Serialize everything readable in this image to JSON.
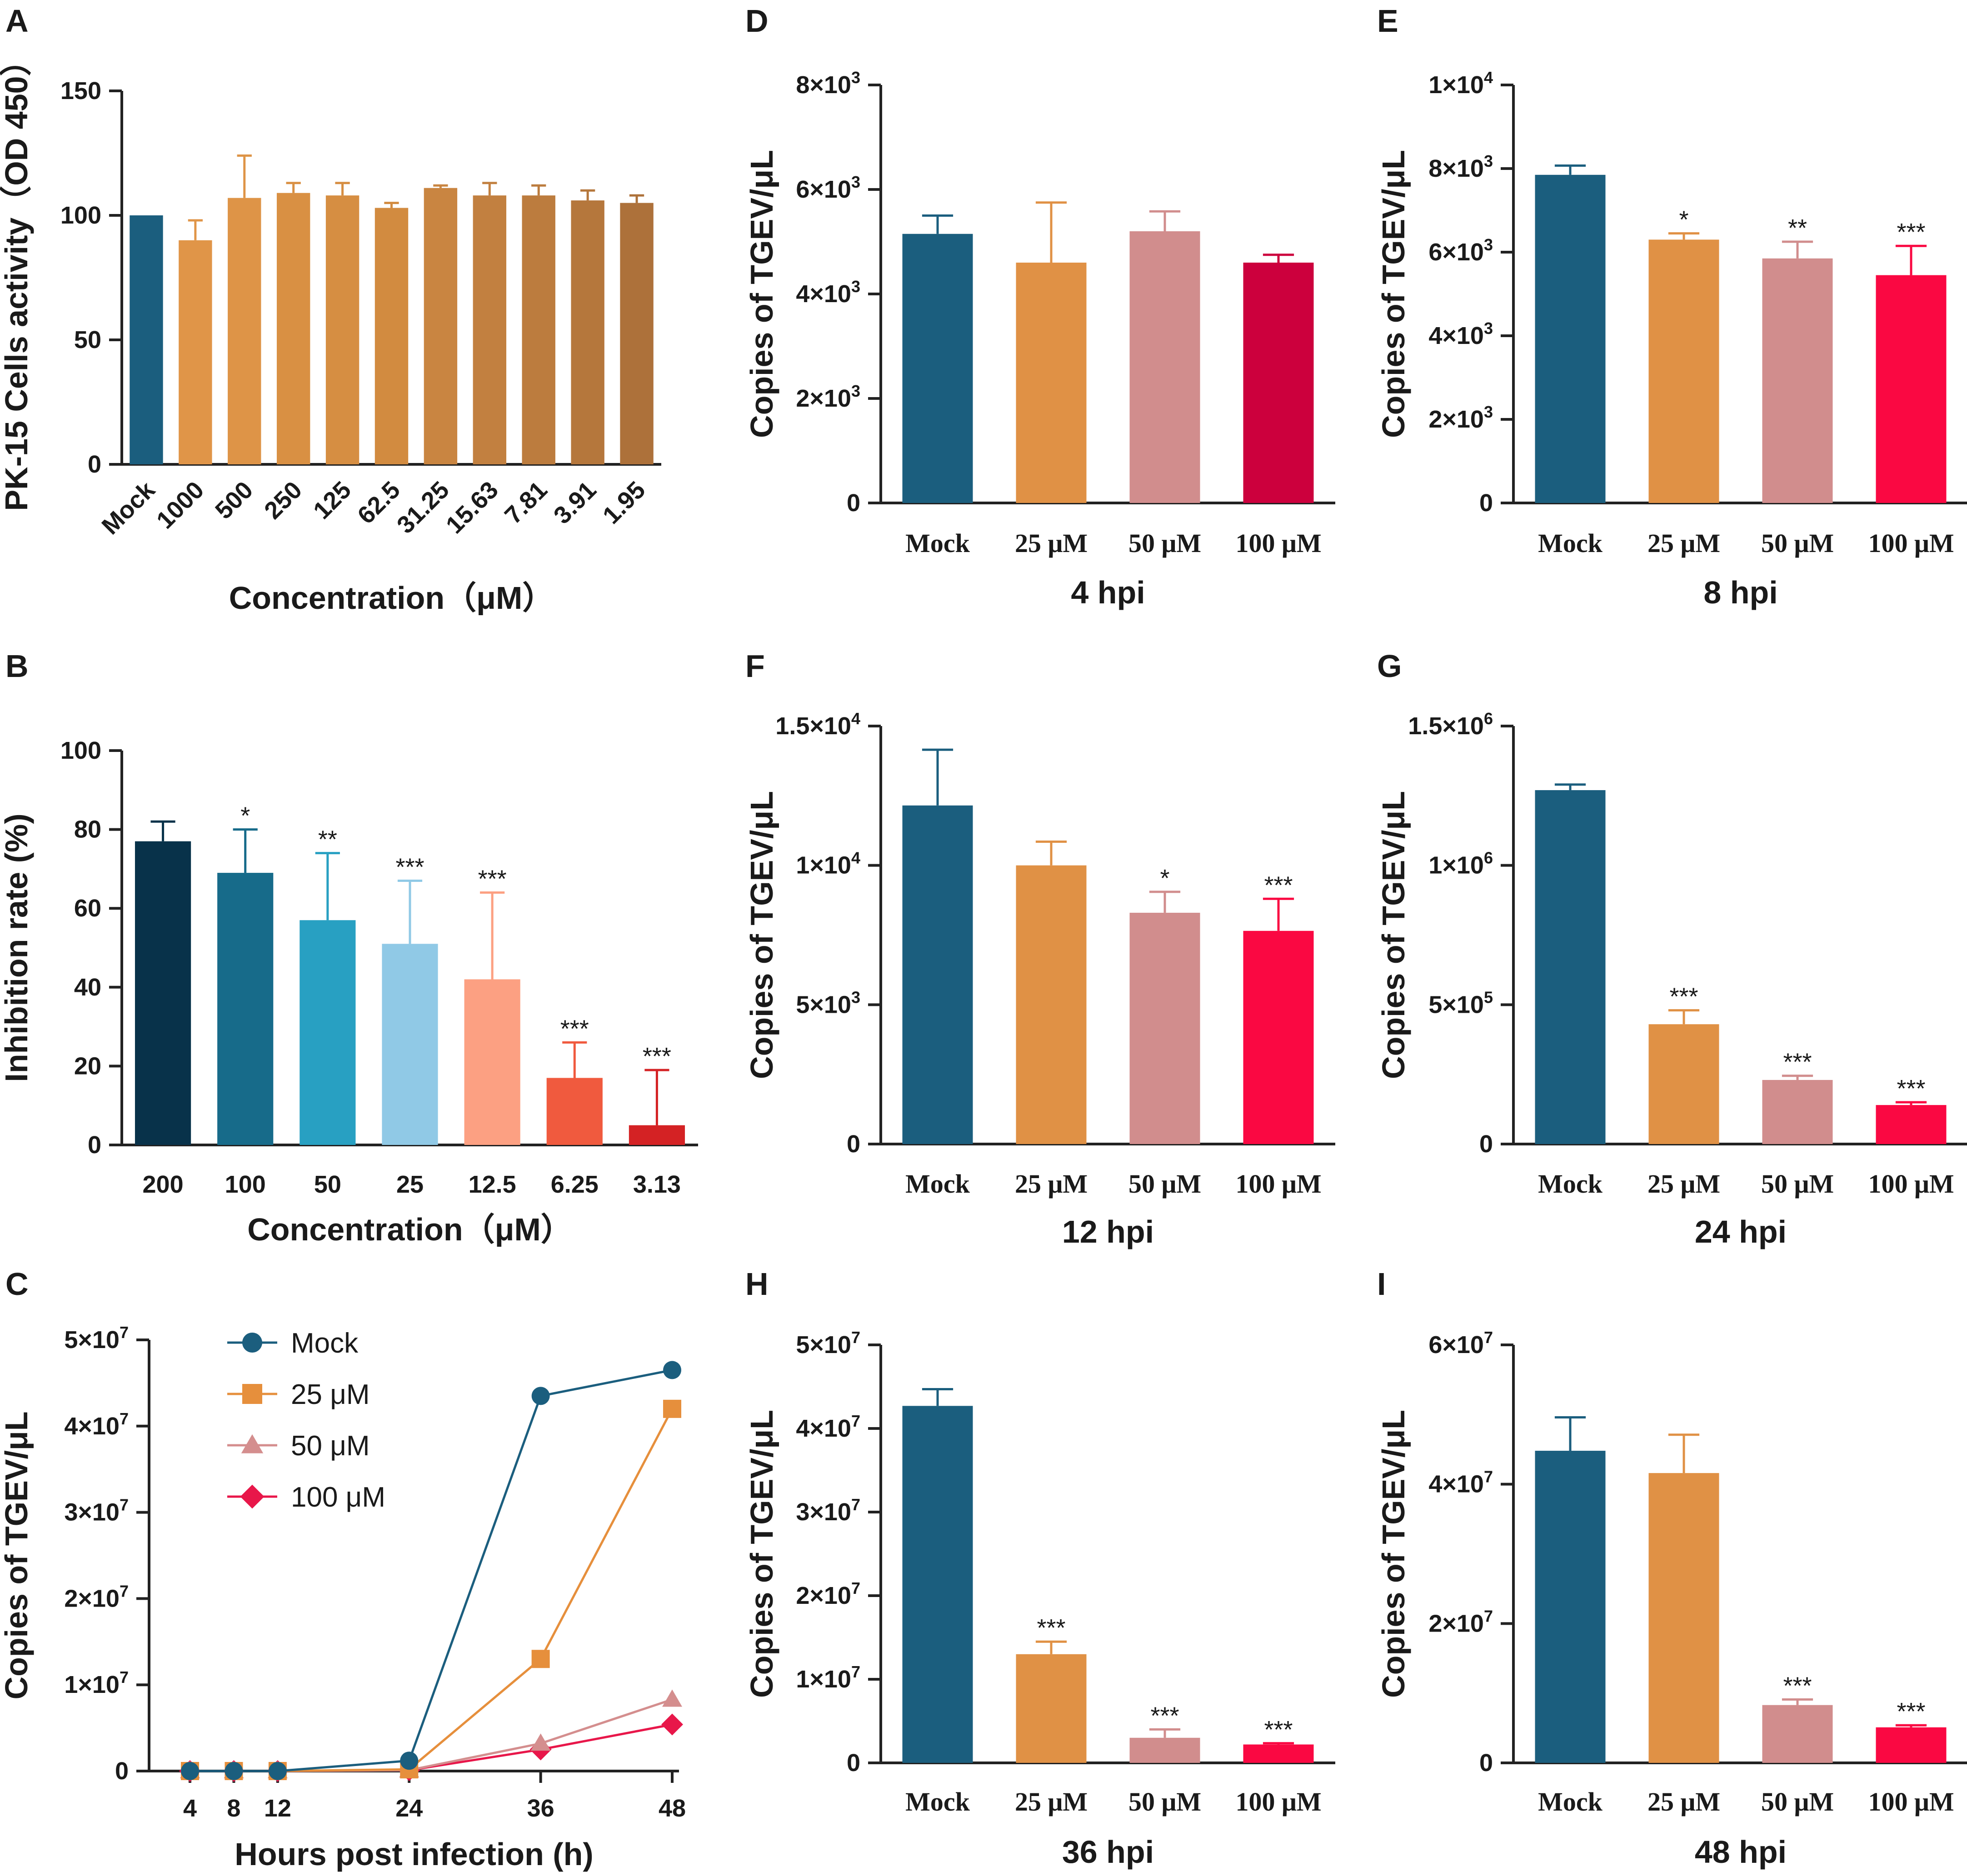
{
  "figure": "multi-panel bar and line charts of PK-15 cell viability and TGEV copy numbers",
  "chart_data": [
    {
      "panel": "A",
      "type": "bar",
      "title": "",
      "xlabel": "Concentration（μM）",
      "ylabel": "PK-15 Cells activity（OD 450）",
      "categories": [
        "Mock",
        "1000",
        "500",
        "250",
        "125",
        "62.5",
        "31.25",
        "15.63",
        "7.81",
        "3.91",
        "1.95"
      ],
      "values": [
        100,
        90,
        107,
        109,
        108,
        103,
        111,
        108,
        108,
        106,
        105
      ],
      "errors": [
        0,
        8,
        17,
        4,
        5,
        2,
        1,
        5,
        4,
        4,
        3
      ],
      "colors": [
        "#1b5e7e",
        "#e09548",
        "#de9447",
        "#d99043",
        "#d68e42",
        "#d28b40",
        "#c98541",
        "#c28040",
        "#bc7c3e",
        "#b5773c",
        "#ad713a"
      ],
      "significance": [
        "",
        "",
        "",
        "",
        "",
        "",
        "",
        "",
        "",
        "",
        ""
      ],
      "ylim": [
        0,
        150
      ],
      "yticks": [
        "0",
        "50",
        "100",
        "150"
      ]
    },
    {
      "panel": "B",
      "type": "bar",
      "title": "",
      "xlabel": "Concentration（μM）",
      "ylabel": "Inhibition rate (%)",
      "categories": [
        "200",
        "100",
        "50",
        "25",
        "12.5",
        "6.25",
        "3.13"
      ],
      "values": [
        77,
        69,
        57,
        51,
        42,
        17,
        5
      ],
      "errors": [
        5,
        11,
        17,
        16,
        22,
        9,
        14
      ],
      "colors": [
        "#08324a",
        "#176b8a",
        "#28a0c2",
        "#90c9e6",
        "#fca082",
        "#f05a3e",
        "#d42224"
      ],
      "significance": [
        "",
        "*",
        "**",
        "***",
        "***",
        "***",
        "***"
      ],
      "ylim": [
        0,
        100
      ],
      "yticks": [
        "0",
        "20",
        "40",
        "60",
        "80",
        "100"
      ]
    },
    {
      "panel": "C",
      "type": "line",
      "title": "",
      "xlabel": "Hours post infection (h)",
      "ylabel": "Copies of TGEV/μL",
      "x": [
        4,
        8,
        12,
        24,
        36,
        48
      ],
      "series": [
        {
          "name": "Mock",
          "color": "#1b5e7e",
          "marker": "circle",
          "values": [
            0,
            0,
            0,
            1200000,
            43500000,
            46500000
          ]
        },
        {
          "name": "25 μM",
          "color": "#e68f3c",
          "marker": "square",
          "values": [
            0,
            0,
            0,
            200000,
            13000000,
            42000000
          ]
        },
        {
          "name": "50 μM",
          "color": "#d48e8e",
          "marker": "triangle",
          "values": [
            0,
            0,
            0,
            100000,
            3200000,
            8300000
          ]
        },
        {
          "name": "100 μM",
          "color": "#e8174a",
          "marker": "diamond",
          "values": [
            0,
            0,
            0,
            100000,
            2500000,
            5400000
          ]
        }
      ],
      "xlim": [
        0,
        48
      ],
      "ylim": [
        0,
        50000000
      ],
      "yticks": [
        {
          "base": "0",
          "exp": ""
        },
        {
          "base": "1×10",
          "exp": "7"
        },
        {
          "base": "2×10",
          "exp": "7"
        },
        {
          "base": "3×10",
          "exp": "7"
        },
        {
          "base": "4×10",
          "exp": "7"
        },
        {
          "base": "5×10",
          "exp": "7"
        }
      ],
      "legend_position": "top-left"
    },
    {
      "panel": "D",
      "type": "bar",
      "title": "",
      "xlabel": "4 hpi",
      "ylabel": "Copies of TGEV/μL",
      "categories": [
        "Mock",
        "25 μM",
        "50 μM",
        "100 μM"
      ],
      "values": [
        5150,
        4600,
        5200,
        4600
      ],
      "errors": [
        350,
        1150,
        380,
        150
      ],
      "colors": [
        "#1b5e7e",
        "#e09145",
        "#d18d8d",
        "#cc003d"
      ],
      "significance": [
        "",
        "",
        "",
        ""
      ],
      "ylim": [
        0,
        8000
      ],
      "yticks": [
        {
          "base": "0",
          "exp": ""
        },
        {
          "base": "2×10",
          "exp": "3"
        },
        {
          "base": "4×10",
          "exp": "3"
        },
        {
          "base": "6×10",
          "exp": "3"
        },
        {
          "base": "8×10",
          "exp": "3"
        }
      ]
    },
    {
      "panel": "E",
      "type": "bar",
      "title": "",
      "xlabel": "8 hpi",
      "ylabel": "Copies of TGEV/μL",
      "categories": [
        "Mock",
        "25 μM",
        "50 μM",
        "100 μM"
      ],
      "values": [
        7850,
        6300,
        5850,
        5450
      ],
      "errors": [
        220,
        150,
        400,
        700
      ],
      "colors": [
        "#1b5e7e",
        "#e09145",
        "#d18d8d",
        "#fa0842"
      ],
      "significance": [
        "",
        "*",
        "**",
        "***"
      ],
      "ylim": [
        0,
        10000
      ],
      "yticks": [
        {
          "base": "0",
          "exp": ""
        },
        {
          "base": "2×10",
          "exp": "3"
        },
        {
          "base": "4×10",
          "exp": "3"
        },
        {
          "base": "6×10",
          "exp": "3"
        },
        {
          "base": "8×10",
          "exp": "3"
        },
        {
          "base": "1×10",
          "exp": "4"
        }
      ]
    },
    {
      "panel": "F",
      "type": "bar",
      "title": "",
      "xlabel": "12 hpi",
      "ylabel": "Copies of TGEV/μL",
      "categories": [
        "Mock",
        "25 μM",
        "50 μM",
        "100 μM"
      ],
      "values": [
        12150,
        10000,
        8300,
        7650
      ],
      "errors": [
        2000,
        850,
        750,
        1150
      ],
      "colors": [
        "#1b5e7e",
        "#e09145",
        "#d18d8d",
        "#fa0842"
      ],
      "significance": [
        "",
        "",
        "*",
        "***"
      ],
      "ylim": [
        0,
        15000
      ],
      "yticks": [
        {
          "base": "0",
          "exp": ""
        },
        {
          "base": "5×10",
          "exp": "3"
        },
        {
          "base": "1×10",
          "exp": "4"
        },
        {
          "base": "1.5×10",
          "exp": "4"
        }
      ]
    },
    {
      "panel": "G",
      "type": "bar",
      "title": "",
      "xlabel": "24 hpi",
      "ylabel": "Copies of TGEV/μL",
      "categories": [
        "Mock",
        "25 μM",
        "50 μM",
        "100 μM"
      ],
      "values": [
        1270000,
        430000,
        230000,
        140000
      ],
      "errors": [
        20000,
        50000,
        15000,
        10000
      ],
      "colors": [
        "#1b5e7e",
        "#e09145",
        "#d18d8d",
        "#fa0842"
      ],
      "significance": [
        "",
        "***",
        "***",
        "***"
      ],
      "ylim": [
        0,
        1500000
      ],
      "yticks": [
        {
          "base": "0",
          "exp": ""
        },
        {
          "base": "5×10",
          "exp": "5"
        },
        {
          "base": "1×10",
          "exp": "6"
        },
        {
          "base": "1.5×10",
          "exp": "6"
        }
      ]
    },
    {
      "panel": "H",
      "type": "bar",
      "title": "",
      "xlabel": "36 hpi",
      "ylabel": "Copies of TGEV/μL",
      "categories": [
        "Mock",
        "25 μM",
        "50 μM",
        "100 μM"
      ],
      "values": [
        42700000,
        13000000,
        3000000,
        2200000
      ],
      "errors": [
        2000000,
        1500000,
        1000000,
        150000
      ],
      "colors": [
        "#1b5e7e",
        "#e09145",
        "#d18d8d",
        "#fa0842"
      ],
      "significance": [
        "",
        "***",
        "***",
        "***"
      ],
      "ylim": [
        0,
        50000000
      ],
      "yticks": [
        {
          "base": "0",
          "exp": ""
        },
        {
          "base": "1×10",
          "exp": "7"
        },
        {
          "base": "2×10",
          "exp": "7"
        },
        {
          "base": "3×10",
          "exp": "7"
        },
        {
          "base": "4×10",
          "exp": "7"
        },
        {
          "base": "5×10",
          "exp": "7"
        }
      ]
    },
    {
      "panel": "I",
      "type": "bar",
      "title": "",
      "xlabel": "48 hpi",
      "ylabel": "Copies of TGEV/μL",
      "categories": [
        "Mock",
        "25 μM",
        "50 μM",
        "100 μM"
      ],
      "values": [
        44800000,
        41600000,
        8300000,
        5100000
      ],
      "errors": [
        4800000,
        5500000,
        800000,
        300000
      ],
      "colors": [
        "#1b5e7e",
        "#e09145",
        "#d18d8d",
        "#fa0842"
      ],
      "significance": [
        "",
        "",
        "***",
        "***"
      ],
      "ylim": [
        0,
        60000000
      ],
      "yticks": [
        {
          "base": "0",
          "exp": ""
        },
        {
          "base": "2×10",
          "exp": "7"
        },
        {
          "base": "4×10",
          "exp": "7"
        },
        {
          "base": "6×10",
          "exp": "7"
        }
      ]
    }
  ]
}
